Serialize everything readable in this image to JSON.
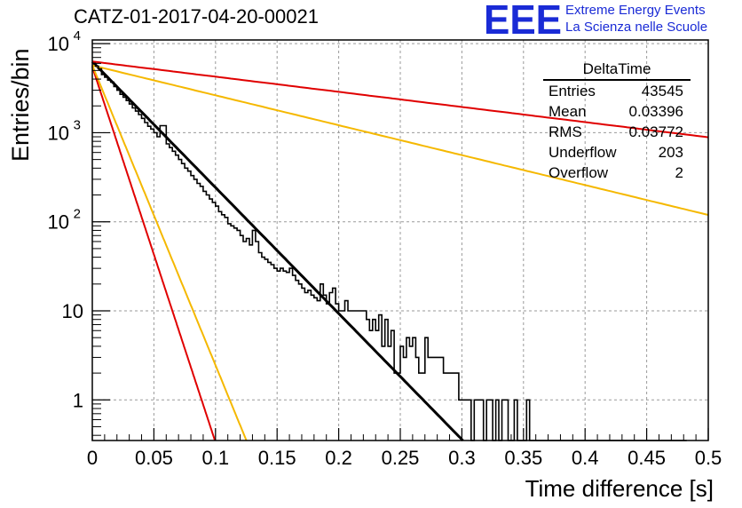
{
  "header": {
    "title": "CATZ-01-2017-04-20-00021",
    "logo_text": "EEE",
    "logo_line1": "Extreme Energy Events",
    "logo_line2": "La Scienza nelle Scuole"
  },
  "stats": {
    "title": "DeltaTime",
    "rows": [
      {
        "label": "Entries",
        "value": "43545"
      },
      {
        "label": "Mean",
        "value": "0.03396"
      },
      {
        "label": "RMS",
        "value": "0.03772"
      },
      {
        "label": "Underflow",
        "value": "203"
      },
      {
        "label": "Overflow",
        "value": "2"
      }
    ]
  },
  "colors": {
    "histogram": "#000000",
    "fit": "#000000",
    "red_curve": "#e00000",
    "orange_curve": "#f5b800",
    "grid": "#9a9a9a"
  },
  "chart_data": {
    "type": "line",
    "xlabel": "Time difference [s]",
    "ylabel": "Entries/bin",
    "xlim": [
      0,
      0.5
    ],
    "ylim": [
      0.35,
      11000
    ],
    "yscale": "log",
    "grid": true,
    "x_ticks": [
      "0",
      "0.05",
      "0.1",
      "0.15",
      "0.2",
      "0.25",
      "0.3",
      "0.35",
      "0.4",
      "0.45",
      "0.5"
    ],
    "y_ticks": [
      {
        "value": 10000,
        "base": "10",
        "exp": "4"
      },
      {
        "value": 1000,
        "base": "10",
        "exp": "3"
      },
      {
        "value": 100,
        "base": "10",
        "exp": "2"
      },
      {
        "value": 10,
        "base": "10",
        "exp": ""
      },
      {
        "value": 1,
        "base": "1",
        "exp": ""
      }
    ],
    "histogram": {
      "bin_width": 0.0025,
      "counts": [
        6000,
        5600,
        5200,
        4500,
        4200,
        3900,
        3700,
        3300,
        3000,
        2700,
        2500,
        2300,
        2100,
        1900,
        1750,
        1600,
        1450,
        1300,
        1180,
        1100,
        1000,
        900,
        1200,
        1200,
        750,
        680,
        620,
        560,
        500,
        450,
        400,
        370,
        330,
        300,
        270,
        250,
        220,
        200,
        180,
        165,
        150,
        130,
        120,
        112,
        95,
        90,
        85,
        80,
        70,
        60,
        65,
        55,
        80,
        60,
        45,
        40,
        38,
        35,
        33,
        30,
        28,
        30,
        28,
        27,
        30,
        25,
        22,
        20,
        18,
        16,
        17,
        15,
        14,
        13,
        20,
        15,
        12,
        16,
        18,
        12,
        10,
        10,
        13,
        10,
        10,
        10,
        10,
        10,
        10,
        8,
        6,
        8,
        6,
        9,
        4,
        8,
        4,
        6,
        2,
        2,
        4,
        3,
        5,
        4,
        5,
        3,
        2,
        2,
        5,
        3,
        3,
        3,
        3,
        3,
        2,
        2,
        2,
        2,
        2,
        1,
        1,
        1,
        1,
        0.3,
        1,
        1,
        1,
        0.3,
        1,
        1,
        0.3,
        1,
        0.3,
        1,
        1,
        0.3,
        0.3,
        1,
        0.3,
        0.3,
        0.3,
        1,
        0.3,
        0.3,
        0.3,
        0.3,
        0.3,
        0.3,
        0.3,
        0.3,
        0.3,
        0.3,
        0.3,
        0.3,
        0.3,
        0.3,
        0.3,
        0.3,
        0.3,
        0.3,
        0.3,
        0.3,
        0.3,
        0.3,
        0.3,
        0.3,
        0.3,
        0.3,
        0.3,
        0.3,
        0.3,
        0.3,
        0.3,
        0.3,
        0.3,
        0.3,
        0.3,
        0.3,
        0.3,
        0.3,
        0.3,
        0.3,
        0.3,
        0.3,
        0.3,
        0.3,
        0.3,
        0.3,
        0.3,
        0.3,
        0.3,
        0.3,
        0.3
      ]
    },
    "curves": [
      {
        "role": "fit",
        "color": "#000000",
        "amplitude": 6300,
        "tau": 0.0307,
        "x_end": 0.33
      },
      {
        "role": "red_slow",
        "color": "#e00000",
        "amplitude": 6300,
        "tau": 0.2553,
        "x_end": 0.5
      },
      {
        "role": "orange_slow",
        "color": "#f5b800",
        "amplitude": 5700,
        "tau": 0.1293,
        "x_end": 0.5
      },
      {
        "role": "red_fast",
        "color": "#e00000",
        "amplitude": 5500,
        "tau": 0.0103,
        "x_end": 0.1
      },
      {
        "role": "orange_fast",
        "color": "#f5b800",
        "amplitude": 5700,
        "tau": 0.0129,
        "x_end": 0.128
      }
    ]
  }
}
